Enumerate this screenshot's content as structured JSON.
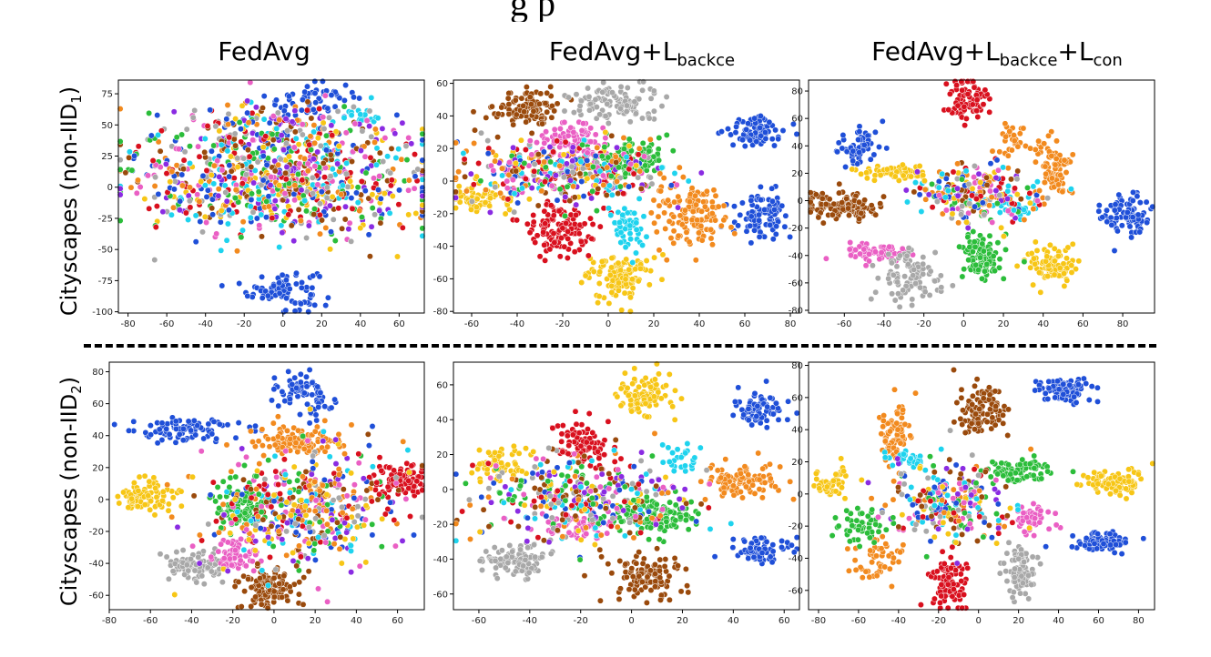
{
  "figure": {
    "top_caption_fragment": "g          p",
    "column_titles": [
      {
        "base": "FedAvg",
        "parts": []
      },
      {
        "base": "FedAvg",
        "parts": [
          {
            "sym": "L",
            "sub": "backce"
          }
        ]
      },
      {
        "base": "FedAvg",
        "parts": [
          {
            "sym": "L",
            "sub": "backce"
          },
          {
            "sym": "L",
            "sub": "con"
          }
        ]
      }
    ],
    "row_labels": [
      {
        "text": "Cityscapes (non-IID",
        "sub": "1",
        "close": ")"
      },
      {
        "text": "Cityscapes (non-IID",
        "sub": "2",
        "close": ")"
      }
    ]
  },
  "palette": {
    "blue": "#1f4fd8",
    "orange": "#f28a1e",
    "red": "#d9101e",
    "green": "#2bbd3a",
    "gray": "#a8a8a8",
    "yellow": "#f7c616",
    "brown": "#9a4a0c",
    "pink": "#ea5fc4",
    "purple": "#8a2be2",
    "cyan": "#1ed3ee",
    "divider": "#000000"
  },
  "chart_data": [
    {
      "type": "scatter",
      "title": "FedAvg",
      "row": "Cityscapes (non-IID1)",
      "xlim": [
        -85,
        73
      ],
      "ylim": [
        -101,
        86
      ],
      "xticks": [
        -80,
        -60,
        -40,
        -20,
        0,
        20,
        40,
        60
      ],
      "yticks": [
        -100,
        -75,
        -50,
        -25,
        0,
        25,
        50,
        75
      ],
      "clusters": [
        {
          "color": "blue",
          "cx": 0,
          "cy": -82,
          "sx": 9,
          "sy": 8,
          "n": 90
        },
        {
          "color": "blue",
          "cx": 15,
          "cy": 70,
          "sx": 12,
          "sy": 7,
          "n": 60
        },
        {
          "color": "cyan",
          "cx": 40,
          "cy": 56,
          "sx": 5,
          "sy": 3,
          "n": 18
        },
        {
          "color": "mix",
          "cx": 0,
          "cy": 5,
          "sx": 38,
          "sy": 22,
          "n": 900
        },
        {
          "color": "mix",
          "cx": -5,
          "cy": 48,
          "sx": 25,
          "sy": 9,
          "n": 150
        }
      ]
    },
    {
      "type": "scatter",
      "title": "FedAvg+Lbackce",
      "row": "Cityscapes (non-IID1)",
      "xlim": [
        -68,
        84
      ],
      "ylim": [
        -81,
        62
      ],
      "xticks": [
        -60,
        -40,
        -20,
        0,
        20,
        40,
        60,
        80
      ],
      "yticks": [
        -80,
        -60,
        -40,
        -20,
        0,
        20,
        40,
        60
      ],
      "clusters": [
        {
          "color": "brown",
          "cx": -36,
          "cy": 45,
          "sx": 7,
          "sy": 6,
          "n": 110
        },
        {
          "color": "gray",
          "cx": 3,
          "cy": 48,
          "sx": 10,
          "sy": 6,
          "n": 110
        },
        {
          "color": "blue",
          "cx": 64,
          "cy": 30,
          "sx": 7,
          "sy": 5,
          "n": 80
        },
        {
          "color": "blue",
          "cx": 68,
          "cy": -21,
          "sx": 6,
          "sy": 7,
          "n": 90
        },
        {
          "color": "orange",
          "cx": 35,
          "cy": -20,
          "sx": 8,
          "sy": 9,
          "n": 140
        },
        {
          "color": "yellow",
          "cx": 5,
          "cy": -60,
          "sx": 7,
          "sy": 7,
          "n": 120
        },
        {
          "color": "red",
          "cx": -22,
          "cy": -28,
          "sx": 8,
          "sy": 9,
          "n": 120
        },
        {
          "color": "cyan",
          "cx": 8,
          "cy": -28,
          "sx": 4,
          "sy": 6,
          "n": 50
        },
        {
          "color": "yellow",
          "cx": -55,
          "cy": -12,
          "sx": 8,
          "sy": 5,
          "n": 70
        },
        {
          "color": "green",
          "cx": 10,
          "cy": 13,
          "sx": 8,
          "sy": 6,
          "n": 110
        },
        {
          "color": "pink",
          "cx": -14,
          "cy": 24,
          "sx": 9,
          "sy": 6,
          "n": 90
        },
        {
          "color": "mix",
          "cx": -20,
          "cy": 5,
          "sx": 22,
          "sy": 9,
          "n": 400
        }
      ]
    },
    {
      "type": "scatter",
      "title": "FedAvg+Lbackce+Lcon",
      "row": "Cityscapes (non-IID1)",
      "xlim": [
        -78,
        96
      ],
      "ylim": [
        -82,
        88
      ],
      "xticks": [
        -60,
        -40,
        -20,
        0,
        20,
        40,
        60,
        80
      ],
      "yticks": [
        -80,
        -60,
        -40,
        -20,
        0,
        20,
        40,
        60,
        80
      ],
      "clusters": [
        {
          "color": "blue",
          "cx": -52,
          "cy": 40,
          "sx": 6,
          "sy": 7,
          "n": 60
        },
        {
          "color": "red",
          "cx": 2,
          "cy": 72,
          "sx": 5,
          "sy": 10,
          "n": 80
        },
        {
          "color": "orange",
          "cx": 45,
          "cy": 24,
          "sx": 5,
          "sy": 10,
          "n": 80
        },
        {
          "color": "orange",
          "cx": 25,
          "cy": 42,
          "sx": 4,
          "sy": 8,
          "n": 30
        },
        {
          "color": "blue",
          "cx": 82,
          "cy": -10,
          "sx": 6,
          "sy": 8,
          "n": 90
        },
        {
          "color": "brown",
          "cx": -62,
          "cy": -4,
          "sx": 10,
          "sy": 5,
          "n": 130
        },
        {
          "color": "yellow",
          "cx": 44,
          "cy": -48,
          "sx": 6,
          "sy": 7,
          "n": 90
        },
        {
          "color": "pink",
          "cx": -48,
          "cy": -37,
          "sx": 9,
          "sy": 3,
          "n": 60
        },
        {
          "color": "gray",
          "cx": -28,
          "cy": -56,
          "sx": 8,
          "sy": 9,
          "n": 100
        },
        {
          "color": "green",
          "cx": 10,
          "cy": -40,
          "sx": 5,
          "sy": 11,
          "n": 100
        },
        {
          "color": "yellow",
          "cx": -35,
          "cy": 20,
          "sx": 10,
          "sy": 2.5,
          "n": 60
        },
        {
          "color": "cyan",
          "cx": 28,
          "cy": -4,
          "sx": 5,
          "sy": 4,
          "n": 25
        },
        {
          "color": "mix",
          "cx": 5,
          "cy": 5,
          "sx": 15,
          "sy": 10,
          "n": 250
        }
      ]
    },
    {
      "type": "scatter",
      "title": "FedAvg",
      "row": "Cityscapes (non-IID2)",
      "xlim": [
        -80,
        73
      ],
      "ylim": [
        -69,
        86
      ],
      "xticks": [
        -80,
        -60,
        -40,
        -20,
        0,
        20,
        40,
        60
      ],
      "yticks": [
        -60,
        -40,
        -20,
        0,
        20,
        40,
        60,
        80
      ],
      "clusters": [
        {
          "color": "blue",
          "cx": -45,
          "cy": 43,
          "sx": 14,
          "sy": 4,
          "n": 90
        },
        {
          "color": "blue",
          "cx": 12,
          "cy": 70,
          "sx": 6,
          "sy": 5,
          "n": 50
        },
        {
          "color": "blue",
          "cx": 22,
          "cy": 58,
          "sx": 3,
          "sy": 7,
          "n": 25
        },
        {
          "color": "yellow",
          "cx": -62,
          "cy": 2,
          "sx": 7,
          "sy": 5,
          "n": 90
        },
        {
          "color": "gray",
          "cx": -38,
          "cy": -42,
          "sx": 7,
          "sy": 5,
          "n": 90
        },
        {
          "color": "brown",
          "cx": -2,
          "cy": -56,
          "sx": 7,
          "sy": 6,
          "n": 110
        },
        {
          "color": "red",
          "cx": 60,
          "cy": 12,
          "sx": 6,
          "sy": 5,
          "n": 90
        },
        {
          "color": "orange",
          "cx": 12,
          "cy": 36,
          "sx": 11,
          "sy": 5,
          "n": 110
        },
        {
          "color": "green",
          "cx": -18,
          "cy": -5,
          "sx": 7,
          "sy": 7,
          "n": 90
        },
        {
          "color": "pink",
          "cx": -18,
          "cy": -36,
          "sx": 6,
          "sy": 5,
          "n": 60
        },
        {
          "color": "mix",
          "cx": 15,
          "cy": -5,
          "sx": 24,
          "sy": 18,
          "n": 500
        }
      ]
    },
    {
      "type": "scatter",
      "title": "FedAvg+Lbackce",
      "row": "Cityscapes (non-IID2)",
      "xlim": [
        -70,
        66
      ],
      "ylim": [
        -69,
        73
      ],
      "xticks": [
        -60,
        -40,
        -20,
        0,
        20,
        40,
        60
      ],
      "yticks": [
        -60,
        -40,
        -20,
        0,
        20,
        40,
        60
      ],
      "clusters": [
        {
          "color": "yellow",
          "cx": 5,
          "cy": 55,
          "sx": 5,
          "sy": 7,
          "n": 90
        },
        {
          "color": "blue",
          "cx": 50,
          "cy": 46,
          "sx": 6,
          "sy": 5,
          "n": 80
        },
        {
          "color": "blue",
          "cx": 50,
          "cy": -35,
          "sx": 6,
          "sy": 4,
          "n": 70
        },
        {
          "color": "orange",
          "cx": 43,
          "cy": 5,
          "sx": 7,
          "sy": 5,
          "n": 100
        },
        {
          "color": "gray",
          "cx": -45,
          "cy": -40,
          "sx": 7,
          "sy": 5,
          "n": 100
        },
        {
          "color": "brown",
          "cx": 5,
          "cy": -50,
          "sx": 7,
          "sy": 6,
          "n": 110
        },
        {
          "color": "red",
          "cx": -20,
          "cy": 25,
          "sx": 6,
          "sy": 8,
          "n": 90
        },
        {
          "color": "green",
          "cx": 8,
          "cy": -15,
          "sx": 8,
          "sy": 6,
          "n": 110
        },
        {
          "color": "pink",
          "cx": -22,
          "cy": -20,
          "sx": 7,
          "sy": 4,
          "n": 70
        },
        {
          "color": "yellow",
          "cx": -52,
          "cy": 15,
          "sx": 6,
          "sy": 5,
          "n": 60
        },
        {
          "color": "cyan",
          "cx": 20,
          "cy": 18,
          "sx": 4,
          "sy": 4,
          "n": 25
        },
        {
          "color": "mix",
          "cx": -20,
          "cy": -5,
          "sx": 22,
          "sy": 12,
          "n": 380
        }
      ]
    },
    {
      "type": "scatter",
      "title": "FedAvg+Lbackce+Lcon",
      "row": "Cityscapes (non-IID2)",
      "xlim": [
        -85,
        88
      ],
      "ylim": [
        -72,
        82
      ],
      "xticks": [
        -80,
        -60,
        -40,
        -20,
        0,
        20,
        40,
        60,
        80
      ],
      "yticks": [
        -60,
        -40,
        -20,
        0,
        20,
        40,
        60,
        80
      ],
      "clusters": [
        {
          "color": "blue",
          "cx": 42,
          "cy": 65,
          "sx": 7,
          "sy": 4,
          "n": 90
        },
        {
          "color": "brown",
          "cx": 1,
          "cy": 52,
          "sx": 6,
          "sy": 7,
          "n": 100
        },
        {
          "color": "orange",
          "cx": -42,
          "cy": 40,
          "sx": 4,
          "sy": 9,
          "n": 80
        },
        {
          "color": "yellow",
          "cx": 68,
          "cy": 8,
          "sx": 7,
          "sy": 4,
          "n": 90
        },
        {
          "color": "blue",
          "cx": 62,
          "cy": -30,
          "sx": 8,
          "sy": 3,
          "n": 80
        },
        {
          "color": "red",
          "cx": -15,
          "cy": -55,
          "sx": 4,
          "sy": 9,
          "n": 100
        },
        {
          "color": "gray",
          "cx": 20,
          "cy": -48,
          "sx": 4,
          "sy": 9,
          "n": 90
        },
        {
          "color": "pink",
          "cx": 25,
          "cy": -15,
          "sx": 5,
          "sy": 4,
          "n": 50
        },
        {
          "color": "green",
          "cx": 20,
          "cy": 15,
          "sx": 9,
          "sy": 4,
          "n": 80
        },
        {
          "color": "cyan",
          "cx": -33,
          "cy": 22,
          "sx": 6,
          "sy": 3,
          "n": 30
        },
        {
          "color": "yellow",
          "cx": -72,
          "cy": 5,
          "sx": 5,
          "sy": 5,
          "n": 50
        },
        {
          "color": "orange",
          "cx": -52,
          "cy": -40,
          "sx": 6,
          "sy": 8,
          "n": 50
        },
        {
          "color": "green",
          "cx": -58,
          "cy": -22,
          "sx": 6,
          "sy": 6,
          "n": 50
        },
        {
          "color": "mix",
          "cx": -15,
          "cy": -5,
          "sx": 15,
          "sy": 12,
          "n": 260
        }
      ]
    }
  ]
}
